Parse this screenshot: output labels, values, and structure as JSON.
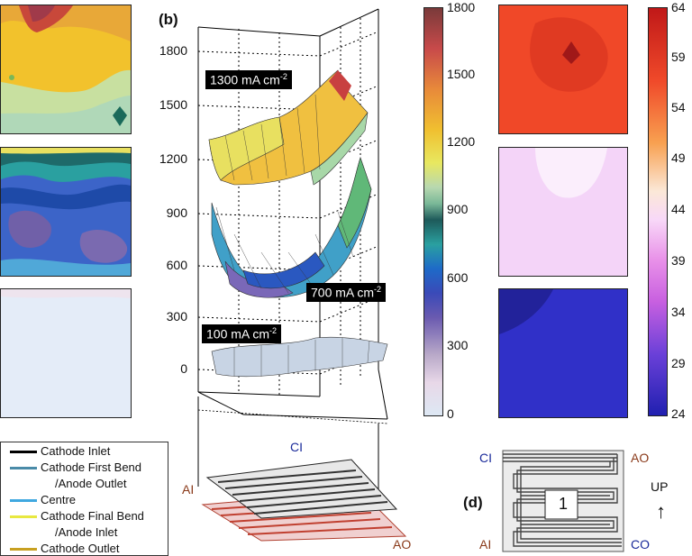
{
  "panel_labels": {
    "b": "(b)",
    "d": "(d)"
  },
  "axis_ticks": [
    "1800",
    "1500",
    "1200",
    "900",
    "600",
    "300",
    "0"
  ],
  "surface_tags": {
    "t1300": {
      "value": "1300 mA cm",
      "exp": "-2"
    },
    "t700": {
      "value": "700 mA cm",
      "exp": "-2"
    },
    "t100": {
      "value": "100 mA cm",
      "exp": "-2"
    }
  },
  "cb_left_ticks": [
    "1800",
    "1500",
    "1200",
    "900",
    "600",
    "300",
    "0"
  ],
  "cb_right_ticks": [
    "64",
    "59",
    "54",
    "49",
    "44",
    "39",
    "34",
    "29",
    "24"
  ],
  "flowfield_labels": {
    "ci": "CI",
    "ai": "AI",
    "ao": "AO"
  },
  "panel_d": {
    "ci": "CI",
    "ao": "AO",
    "ai": "AI",
    "co": "CO",
    "number": "1",
    "up": "UP",
    "arrow": "↑"
  },
  "legend": [
    {
      "label": "Cathode Inlet",
      "color": "#000000"
    },
    {
      "label": "Cathode First Bend",
      "color": "#4a8ba8"
    },
    {
      "label": "/Anode Outlet",
      "color": ""
    },
    {
      "label": "Centre",
      "color": "#40a8e0"
    },
    {
      "label": "Cathode Final Bend",
      "color": "#e8e840"
    },
    {
      "label": "/Anode Inlet",
      "color": ""
    },
    {
      "label": "Cathode Outlet",
      "color": "#c8a020"
    }
  ]
}
